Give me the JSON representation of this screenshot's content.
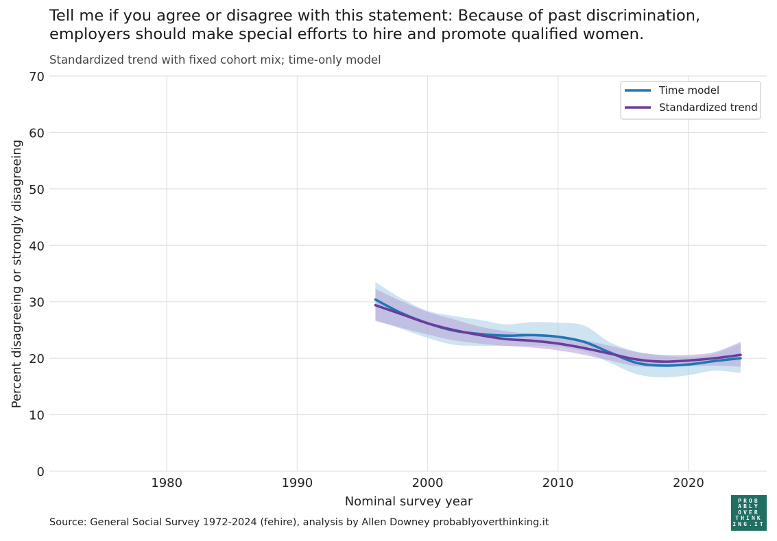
{
  "title": "Tell me if you agree or disagree with this statement: Because of past discrimination, employers should make special efforts to hire and promote qualified women.",
  "subtitle": "Standardized trend with fixed cohort mix; time-only model",
  "source": "Source: General Social Survey 1972-2024 (fehire), analysis by Allen Downey probablyoverthinking.it",
  "logo": [
    "PROB",
    "ABLY",
    "OVER",
    "THINK",
    "ING.IT"
  ],
  "chart_data": {
    "type": "line",
    "xlabel": "Nominal survey year",
    "ylabel": "Percent disagreeing or strongly disagreeing",
    "xlim": [
      1971,
      2026
    ],
    "ylim": [
      0,
      70
    ],
    "xticks": [
      1980,
      1990,
      2000,
      2010,
      2020
    ],
    "yticks": [
      0,
      10,
      20,
      30,
      40,
      50,
      60,
      70
    ],
    "grid": true,
    "legend_position": "top-right",
    "series": [
      {
        "name": "Time model",
        "color": "#1f77b4",
        "band_color": "#a6cde3",
        "x": [
          1996,
          1998,
          2000,
          2002,
          2004,
          2006,
          2008,
          2010,
          2012,
          2014,
          2016,
          2018,
          2020,
          2022,
          2024
        ],
        "y": [
          30.4,
          28.0,
          26.2,
          24.9,
          24.3,
          24.0,
          24.1,
          23.8,
          22.9,
          21.0,
          19.2,
          18.7,
          18.9,
          19.5,
          20.0
        ],
        "lower": [
          26.8,
          25.2,
          23.6,
          22.4,
          22.2,
          22.2,
          22.2,
          22.0,
          21.2,
          19.2,
          17.2,
          16.6,
          17.0,
          17.8,
          17.4
        ],
        "upper": [
          33.5,
          30.6,
          28.4,
          27.5,
          26.8,
          26.0,
          26.4,
          26.3,
          25.8,
          22.8,
          21.2,
          20.5,
          20.2,
          20.8,
          22.6
        ]
      },
      {
        "name": "Standardized trend",
        "color": "#6a3d9a",
        "band_color": "#b9a6d9",
        "x": [
          1996,
          1998,
          2000,
          2002,
          2004,
          2006,
          2008,
          2010,
          2012,
          2014,
          2016,
          2018,
          2020,
          2022,
          2024
        ],
        "y": [
          29.4,
          27.8,
          26.2,
          25.0,
          24.1,
          23.4,
          23.1,
          22.6,
          21.8,
          20.8,
          19.8,
          19.4,
          19.6,
          20.0,
          20.6
        ],
        "lower": [
          26.6,
          25.4,
          24.2,
          23.2,
          22.6,
          22.2,
          21.9,
          21.4,
          20.6,
          19.6,
          18.6,
          18.5,
          18.6,
          18.7,
          18.5
        ],
        "upper": [
          32.3,
          30.1,
          28.2,
          26.9,
          25.6,
          24.8,
          24.3,
          23.9,
          23.2,
          22.2,
          21.1,
          20.6,
          20.6,
          21.1,
          22.9
        ]
      }
    ]
  }
}
